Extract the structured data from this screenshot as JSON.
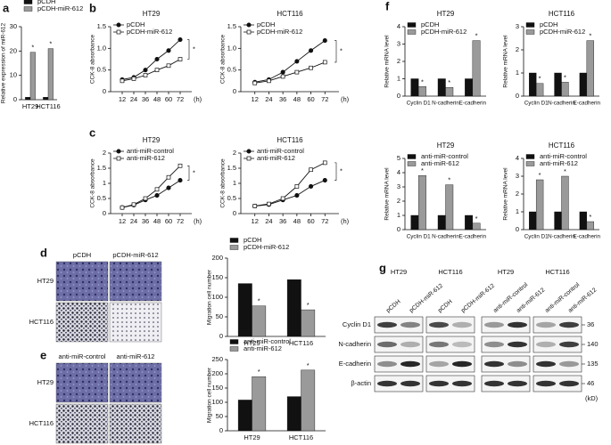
{
  "panels": [
    "a",
    "b",
    "c",
    "d",
    "e",
    "f",
    "g"
  ],
  "chart_data": [
    {
      "type": "bar",
      "ylabel": "Relative expression of miR-612",
      "annotation": "*",
      "legend": "upper left",
      "categories": [
        "HT29",
        "HCT116"
      ],
      "ylim": [
        0,
        30
      ],
      "yticks": [
        0,
        10,
        20,
        30
      ],
      "series": [
        {
          "name": "pCDH",
          "color": "#111111",
          "values": [
            1,
            1
          ]
        },
        {
          "name": "pCDH-miR-612",
          "color": "#9a9a9a",
          "values": [
            19.5,
            21
          ]
        }
      ]
    },
    {
      "type": "line",
      "title": "HT29",
      "ylabel": "CCK-8 absorbance",
      "xlabel": "(h)",
      "annotation": "*",
      "legend": "upper left",
      "x": [
        12,
        24,
        36,
        48,
        60,
        72
      ],
      "xlim": [
        0,
        84
      ],
      "xticks": [
        12,
        24,
        36,
        48,
        60,
        72
      ],
      "ylim": [
        0,
        1.5
      ],
      "yticks": [
        0,
        0.5,
        {
          "value": 1,
          "label": "1.0"
        },
        1.5
      ],
      "series": [
        {
          "name": "pCDH",
          "color": "#111111",
          "marker": "circle",
          "values": [
            0.28,
            0.33,
            0.5,
            0.75,
            0.95,
            1.2
          ]
        },
        {
          "name": "pCDH-miR-612",
          "color": "#ffffff",
          "marker": "square",
          "values": [
            0.25,
            0.3,
            0.38,
            0.5,
            0.6,
            0.75
          ]
        }
      ]
    },
    {
      "type": "line",
      "title": "HCT116",
      "ylabel": "CCK-8 absorbance",
      "xlabel": "(h)",
      "annotation": "*",
      "legend": "upper left",
      "x": [
        12,
        24,
        36,
        48,
        60,
        72
      ],
      "xlim": [
        0,
        84
      ],
      "xticks": [
        12,
        24,
        36,
        48,
        60,
        72
      ],
      "ylim": [
        0,
        1.5
      ],
      "yticks": [
        0,
        0.5,
        {
          "value": 1,
          "label": "1.0"
        },
        1.5
      ],
      "series": [
        {
          "name": "pCDH",
          "color": "#111111",
          "marker": "circle",
          "values": [
            0.22,
            0.28,
            0.45,
            0.7,
            0.95,
            1.18
          ]
        },
        {
          "name": "pCDH-miR-612",
          "color": "#ffffff",
          "marker": "square",
          "values": [
            0.2,
            0.25,
            0.35,
            0.45,
            0.55,
            0.68
          ]
        }
      ]
    },
    {
      "type": "line",
      "title": "HT29",
      "ylabel": "CCK-8 absorbance",
      "xlabel": "(h)",
      "annotation": "*",
      "legend": "upper left",
      "x": [
        12,
        24,
        36,
        48,
        60,
        72
      ],
      "xlim": [
        0,
        84
      ],
      "xticks": [
        12,
        24,
        36,
        48,
        60,
        72
      ],
      "ylim": [
        0,
        2
      ],
      "yticks": [
        0,
        0.5,
        1,
        1.5,
        2
      ],
      "series": [
        {
          "name": "anti-miR-control",
          "color": "#111111",
          "marker": "circle",
          "values": [
            0.2,
            0.28,
            0.45,
            0.6,
            0.85,
            1.1
          ]
        },
        {
          "name": "anti-miR-612",
          "color": "#ffffff",
          "marker": "square",
          "values": [
            0.2,
            0.3,
            0.5,
            0.8,
            1.2,
            1.58
          ]
        }
      ]
    },
    {
      "type": "line",
      "title": "HCT116",
      "ylabel": "CCK-8 absorbance",
      "xlabel": "(h)",
      "annotation": "*",
      "legend": "upper left",
      "x": [
        12,
        24,
        36,
        48,
        60,
        72
      ],
      "xlim": [
        0,
        84
      ],
      "xticks": [
        12,
        24,
        36,
        48,
        60,
        72
      ],
      "ylim": [
        0,
        2
      ],
      "yticks": [
        0,
        0.5,
        1,
        1.5,
        2
      ],
      "series": [
        {
          "name": "anti-miR-control",
          "color": "#111111",
          "marker": "circle",
          "values": [
            0.25,
            0.3,
            0.45,
            0.6,
            0.9,
            1.1
          ]
        },
        {
          "name": "anti-miR-612",
          "color": "#ffffff",
          "marker": "square",
          "values": [
            0.25,
            0.32,
            0.5,
            0.9,
            1.45,
            1.68
          ]
        }
      ]
    },
    {
      "type": "bar",
      "title": "HT29",
      "ylabel": "Relative mRNA level",
      "annotation": "*",
      "legend": "upper left",
      "categories": [
        "Cyclin D1",
        "N-cadherin",
        "E-cadherin"
      ],
      "ylim": [
        0,
        4
      ],
      "yticks": [
        0,
        1,
        2,
        3,
        4
      ],
      "series": [
        {
          "name": "pCDH",
          "color": "#111111",
          "values": [
            1,
            1,
            1
          ]
        },
        {
          "name": "pCDH-miR-612",
          "color": "#9a9a9a",
          "values": [
            0.55,
            0.5,
            3.2
          ]
        }
      ]
    },
    {
      "type": "bar",
      "title": "HCT116",
      "ylabel": "Relative mRNA level",
      "annotation": "*",
      "legend": "upper left",
      "categories": [
        "Cyclin D1",
        "N-cadherin",
        "E-cadherin"
      ],
      "ylim": [
        0,
        3
      ],
      "yticks": [
        0,
        1,
        2,
        3
      ],
      "series": [
        {
          "name": "pCDH",
          "color": "#111111",
          "values": [
            1,
            1,
            1
          ]
        },
        {
          "name": "pCDH-miR-612",
          "color": "#9a9a9a",
          "values": [
            0.55,
            0.6,
            2.4
          ]
        }
      ]
    },
    {
      "type": "bar",
      "title": "HT29",
      "ylabel": "Relative mRNA level",
      "annotation": "*",
      "legend": "upper left",
      "categories": [
        "Cyclin D1",
        "N-cadherin",
        "E-cadherin"
      ],
      "ylim": [
        0,
        5
      ],
      "yticks": [
        0,
        1,
        2,
        3,
        4,
        5
      ],
      "series": [
        {
          "name": "anti-miR-control",
          "color": "#111111",
          "values": [
            1,
            1,
            1
          ]
        },
        {
          "name": "anti-miR-612",
          "color": "#9a9a9a",
          "values": [
            3.8,
            3.15,
            0.45
          ]
        }
      ]
    },
    {
      "type": "bar",
      "title": "HCT116",
      "ylabel": "Relative mRNA level",
      "annotation": "*",
      "legend": "upper left",
      "categories": [
        "Cyclin D1",
        "N-cadherin",
        "E-cadherin"
      ],
      "ylim": [
        0,
        4
      ],
      "yticks": [
        0,
        1,
        2,
        3,
        4
      ],
      "series": [
        {
          "name": "anti-miR-control",
          "color": "#111111",
          "values": [
            1,
            1,
            1
          ]
        },
        {
          "name": "anti-miR-612",
          "color": "#9a9a9a",
          "values": [
            2.8,
            3.0,
            0.45
          ]
        }
      ]
    },
    {
      "type": "bar",
      "ylabel": "Migration cell number",
      "annotation": "*",
      "legend": "upper left",
      "categories": [
        "HT29",
        "HCT116"
      ],
      "ylim": [
        0,
        200
      ],
      "yticks": [
        0,
        50,
        100,
        150,
        200
      ],
      "series": [
        {
          "name": "pCDH",
          "color": "#111111",
          "values": [
            135,
            145
          ]
        },
        {
          "name": "pCDH-miR-612",
          "color": "#9a9a9a",
          "values": [
            78,
            68
          ]
        }
      ]
    },
    {
      "type": "bar",
      "ylabel": "Migration cell number",
      "annotation": "*",
      "legend": "upper left",
      "categories": [
        "HT29",
        "HCT116"
      ],
      "ylim": [
        0,
        250
      ],
      "yticks": [
        0,
        50,
        100,
        150,
        200,
        250
      ],
      "series": [
        {
          "name": "anti-miR-control",
          "color": "#111111",
          "values": [
            108,
            120
          ]
        },
        {
          "name": "anti-miR-612",
          "color": "#9a9a9a",
          "values": [
            190,
            213
          ]
        }
      ]
    }
  ],
  "images": [
    {
      "columns": [
        "pCDH",
        "pCDH-miR-612"
      ],
      "rows": [
        "HT29",
        "HCT116"
      ]
    },
    {
      "columns": [
        "anti-miR-control",
        "anti-miR-612"
      ],
      "rows": [
        "HT29",
        "HCT116"
      ]
    }
  ],
  "blot": {
    "groups": [
      {
        "name": "HT29",
        "lanes": [
          "pCDH",
          "pCDH-miR-612"
        ]
      },
      {
        "name": "HCT116",
        "lanes": [
          "pCDH",
          "pCDH-miR-612"
        ]
      },
      {
        "name": "HT29",
        "lanes": [
          "anti-miR-control",
          "anti-miR-612"
        ]
      },
      {
        "name": "HCT116",
        "lanes": [
          "anti-miR-control",
          "anti-miR-612"
        ]
      }
    ],
    "rows": [
      {
        "name": "Cyclin D1",
        "size": "36"
      },
      {
        "name": "N-cadherin",
        "size": "140"
      },
      {
        "name": "E-cadherin",
        "size": "135"
      },
      {
        "name": "β-actin",
        "size": "46"
      }
    ],
    "unit": "(kD)"
  }
}
